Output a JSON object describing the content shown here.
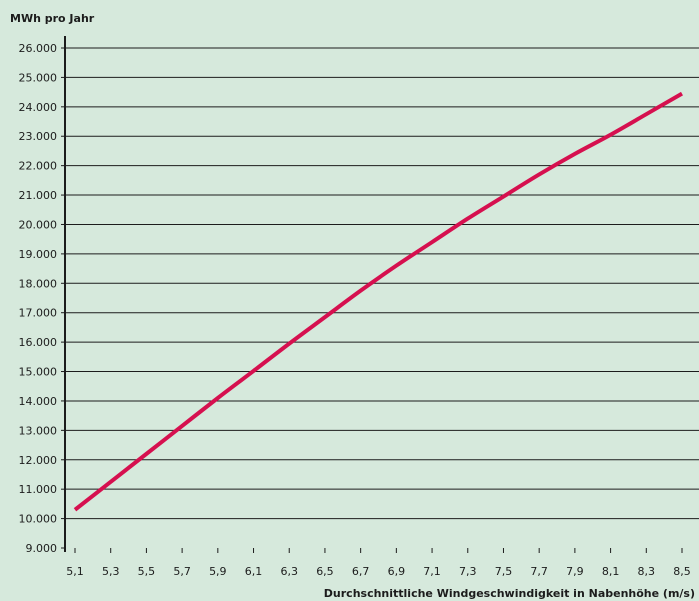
{
  "chart_data": {
    "type": "line",
    "title": "",
    "ylabel": "MWh pro Jahr",
    "xlabel": "Durchschnittliche Windgeschwindigkeit in Nabenhöhe (m/s)",
    "ylim": [
      9000,
      26000
    ],
    "xlim": [
      5.0,
      8.6
    ],
    "grid": "horizontal",
    "legend": "none",
    "y_ticks": [
      "9.000",
      "10.000",
      "11.000",
      "12.000",
      "13.000",
      "14.000",
      "15.000",
      "16.000",
      "17.000",
      "18.000",
      "19.000",
      "20.000",
      "21.000",
      "22.000",
      "23.000",
      "24.000",
      "25.000",
      "26.000"
    ],
    "x_ticks": [
      "5,1",
      "5,3",
      "5,5",
      "5,7",
      "5,9",
      "6,1",
      "6,3",
      "6,5",
      "6,7",
      "6,9",
      "7,1",
      "7,3",
      "7,5",
      "7,7",
      "7,9",
      "8,1",
      "8,3",
      "8,5"
    ],
    "colors": {
      "background": "#d6e9dc",
      "line": "#d6104f",
      "grid": "#1c1c1c",
      "text": "#1c1c1c"
    },
    "series": [
      {
        "x": [
          5.1,
          5.3,
          5.5,
          5.7,
          5.9,
          6.1,
          6.3,
          6.5,
          6.7,
          6.9,
          7.1,
          7.3,
          7.5,
          7.7,
          7.9,
          8.1,
          8.3,
          8.5
        ],
        "y": [
          10300,
          11250,
          12200,
          13150,
          14100,
          15020,
          15950,
          16850,
          17750,
          18600,
          19400,
          20200,
          20950,
          21700,
          22400,
          23050,
          23750,
          24450
        ]
      }
    ]
  }
}
